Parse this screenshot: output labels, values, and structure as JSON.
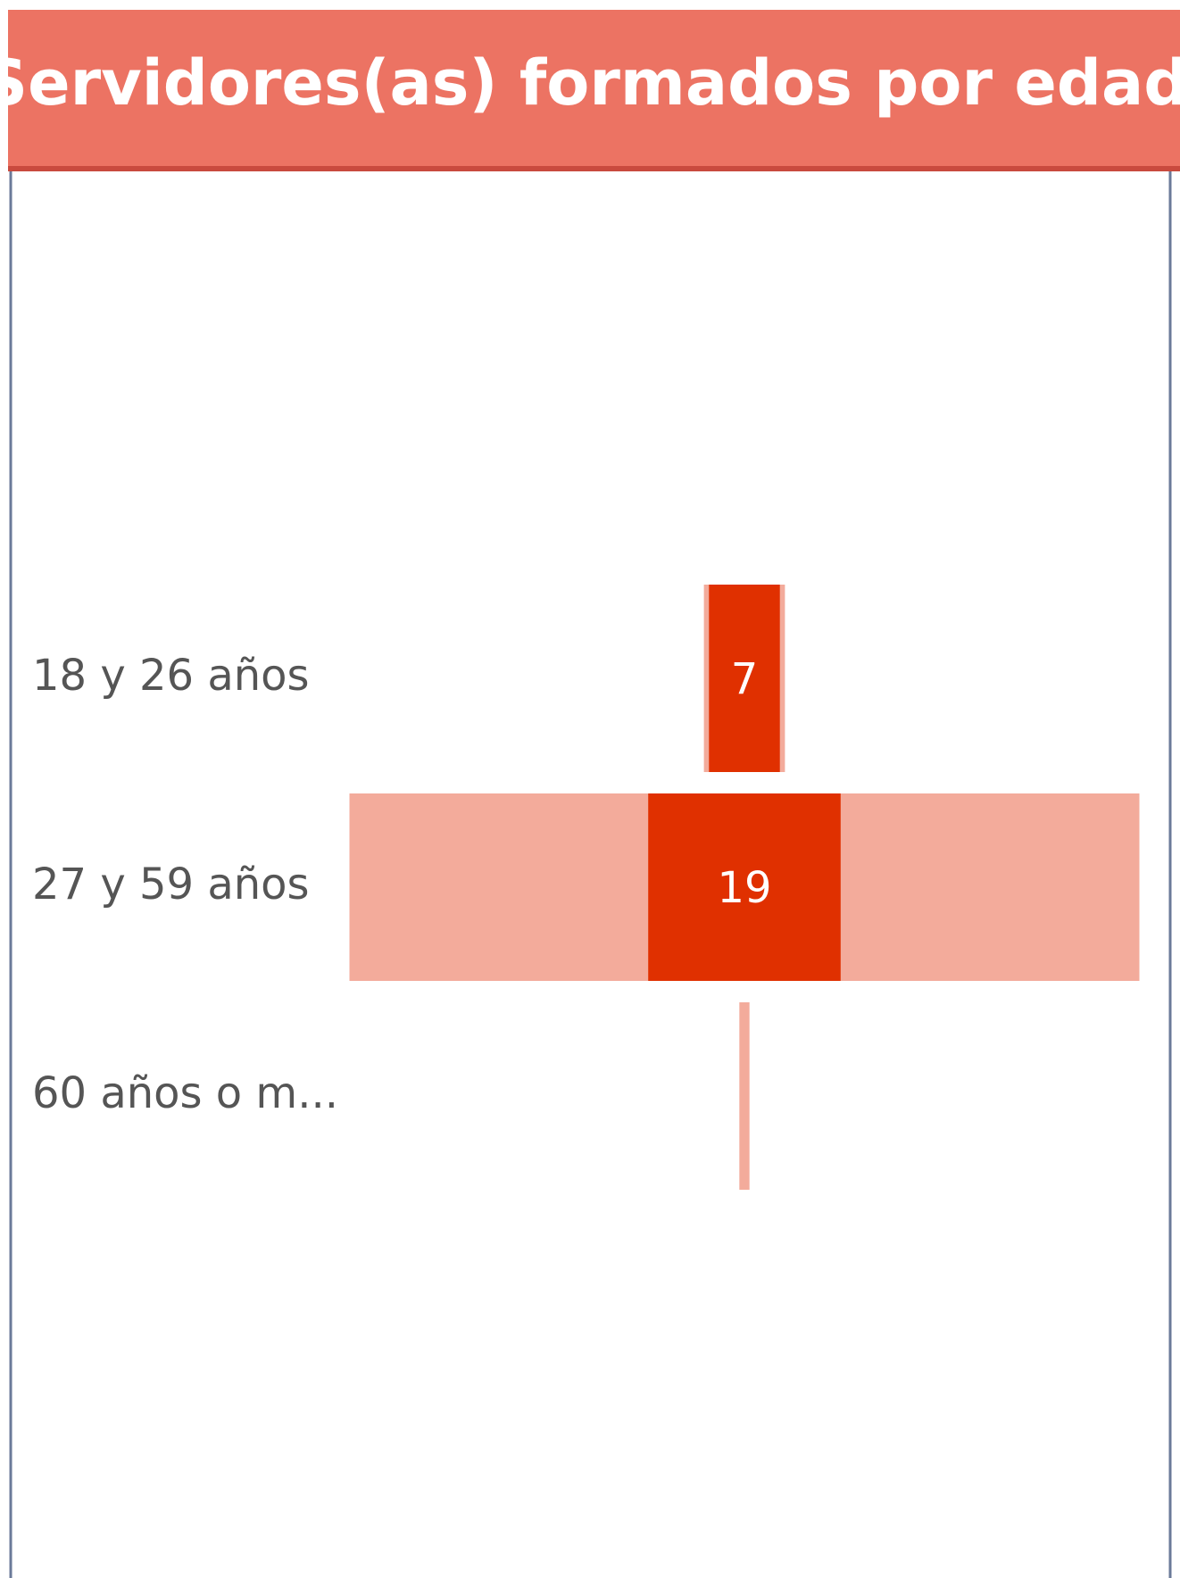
{
  "chart_data": {
    "type": "funnel",
    "title": "Servidores(as) formados por edad",
    "categories": [
      "18 y 26 años",
      "27 y 59 años",
      "60 años o m..."
    ],
    "series": [
      {
        "color": "#f3ab9b",
        "values": [
          8,
          78,
          1
        ]
      },
      {
        "color": "#e03000",
        "values": [
          7,
          19,
          null
        ]
      }
    ],
    "header_color": "#ec7363"
  }
}
